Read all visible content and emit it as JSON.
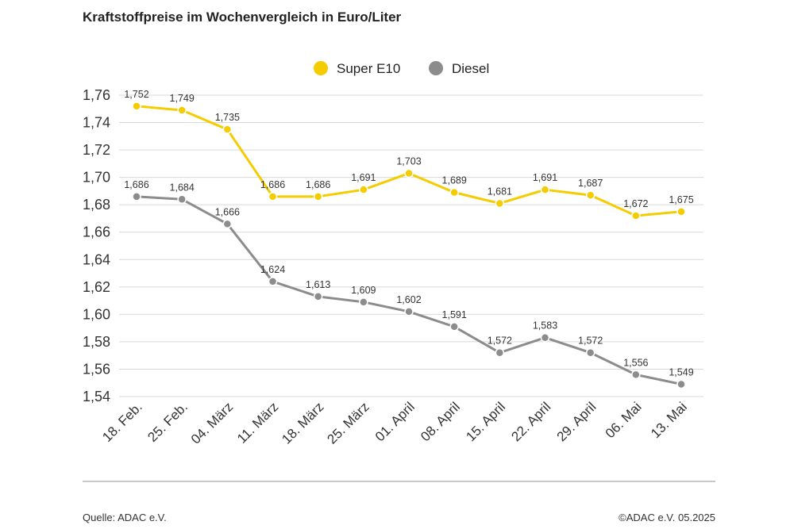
{
  "title": "Kraftstoffpreise im Wochenvergleich in Euro/Liter",
  "footer": {
    "source": "Quelle: ADAC e.V.",
    "copyright": "©ADAC e.V. 05.2025"
  },
  "chart_data": {
    "type": "line",
    "title": "Kraftstoffpreise im Wochenvergleich in Euro/Liter",
    "xlabel": "",
    "ylabel": "",
    "ylim": [
      1.54,
      1.76
    ],
    "yticks": [
      "1,76",
      "1,74",
      "1,72",
      "1,70",
      "1,68",
      "1,66",
      "1,64",
      "1,62",
      "1,60",
      "1,58",
      "1,56",
      "1,54"
    ],
    "ytick_values": [
      1.76,
      1.74,
      1.72,
      1.7,
      1.68,
      1.66,
      1.64,
      1.62,
      1.6,
      1.58,
      1.56,
      1.54
    ],
    "grid": true,
    "legend": "top-center",
    "categories": [
      "18. Feb.",
      "25. Feb.",
      "04. März",
      "11. März",
      "18. März",
      "25. März",
      "01. April",
      "08. April",
      "15. April",
      "22. April",
      "29. April",
      "06. Mai",
      "13. Mai"
    ],
    "series": [
      {
        "name": "Super E10",
        "color": "#f5cc00",
        "values": [
          1.752,
          1.749,
          1.735,
          1.686,
          1.686,
          1.691,
          1.703,
          1.689,
          1.681,
          1.691,
          1.687,
          1.672,
          1.675
        ],
        "labels": [
          "1,752",
          "1,749",
          "1,735",
          "1,686",
          "1,686",
          "1,691",
          "1,703",
          "1,689",
          "1,681",
          "1,691",
          "1,687",
          "1,672",
          "1,675"
        ]
      },
      {
        "name": "Diesel",
        "color": "#8c8c8c",
        "values": [
          1.686,
          1.684,
          1.666,
          1.624,
          1.613,
          1.609,
          1.602,
          1.591,
          1.572,
          1.583,
          1.572,
          1.556,
          1.549
        ],
        "labels": [
          "1,686",
          "1,684",
          "1,666",
          "1,624",
          "1,613",
          "1,609",
          "1,602",
          "1,591",
          "1,572",
          "1,583",
          "1,572",
          "1,556",
          "1,549"
        ]
      }
    ]
  }
}
